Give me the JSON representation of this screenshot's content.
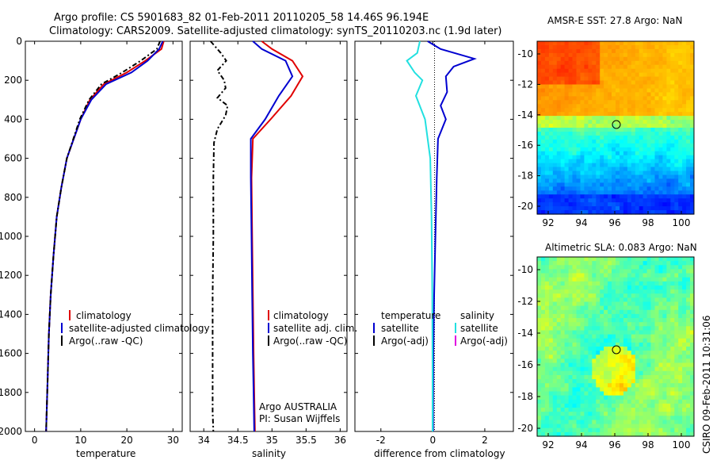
{
  "title": {
    "line1": "Argo profile: CS 5901683_82 01-Feb-2011 20110205_58 14.46S 96.194E",
    "line2": "Climatology: CARS2009. Satellite-adjusted climatology: synTS_20110203.nc (1.9d later)"
  },
  "stamp": "CSIRO 09-Feb-2011 10:31:06",
  "colors": {
    "climatology": "#e00000",
    "satellite": "#0000d0",
    "argo": "#000000",
    "cyan": "#22e0e0",
    "magenta": "#e000e0"
  },
  "chart_data": [
    {
      "type": "line",
      "xlabel": "temperature",
      "ylabel": "",
      "xlim": [
        -2,
        32
      ],
      "ylim": [
        2000,
        0
      ],
      "xticks": [
        0,
        10,
        20,
        30
      ],
      "yticks": [
        0,
        200,
        400,
        600,
        800,
        1000,
        1200,
        1400,
        1600,
        1800,
        2000
      ],
      "legend": [
        "climatology",
        "satellite-adjusted climatology",
        "Argo(..raw -QC)"
      ],
      "series": [
        {
          "name": "climatology",
          "color": "#e00000",
          "style": "solid",
          "x": [
            28,
            27.5,
            24,
            20,
            15,
            12,
            10,
            8.5,
            7,
            5.8,
            4.8,
            4.1,
            3.5,
            3.1,
            2.8,
            2.5
          ],
          "y": [
            0,
            40,
            100,
            160,
            220,
            300,
            400,
            500,
            600,
            750,
            900,
            1100,
            1300,
            1500,
            1750,
            2000
          ]
        },
        {
          "name": "satellite-adjusted climatology",
          "color": "#0000d0",
          "style": "solid",
          "x": [
            27.8,
            27,
            24.5,
            21,
            15.5,
            12.3,
            10,
            8.5,
            7,
            5.8,
            4.8,
            4.1,
            3.5,
            3.1,
            2.8,
            2.5
          ],
          "y": [
            0,
            40,
            100,
            160,
            220,
            300,
            400,
            500,
            600,
            750,
            900,
            1100,
            1300,
            1500,
            1750,
            2000
          ]
        },
        {
          "name": "Argo(..raw -QC)",
          "color": "#000000",
          "style": "dashdot",
          "x": [
            27.2,
            26.5,
            23,
            19,
            14.5,
            11.8,
            9.8,
            8.4,
            7,
            5.8,
            4.8,
            4.1,
            3.5,
            3.1,
            2.8,
            2.5
          ],
          "y": [
            0,
            40,
            100,
            160,
            220,
            300,
            400,
            500,
            600,
            750,
            900,
            1100,
            1300,
            1500,
            1750,
            2000
          ]
        }
      ]
    },
    {
      "type": "line",
      "xlabel": "salinity",
      "ylabel": "",
      "xlim": [
        33.8,
        36.1
      ],
      "ylim": [
        2000,
        0
      ],
      "xticks": [
        34,
        34.5,
        35,
        35.5,
        36
      ],
      "legend": [
        "climatology",
        "satellite adj. clim.",
        "Argo(..raw -QC)"
      ],
      "annotation": [
        "Argo AUSTRALIA",
        "PI: Susan Wijffels"
      ],
      "series": [
        {
          "name": "climatology",
          "color": "#e00000",
          "style": "solid",
          "x": [
            34.85,
            35.0,
            35.3,
            35.45,
            35.28,
            34.98,
            34.72,
            34.7,
            34.71,
            34.72,
            34.73,
            34.74,
            34.75
          ],
          "y": [
            0,
            40,
            100,
            180,
            280,
            400,
            500,
            700,
            1000,
            1300,
            1600,
            1800,
            2000
          ]
        },
        {
          "name": "satellite adj. clim.",
          "color": "#0000d0",
          "style": "solid",
          "x": [
            34.72,
            34.85,
            35.2,
            35.3,
            35.1,
            34.9,
            34.69,
            34.69,
            34.7,
            34.71,
            34.72,
            34.73,
            34.74
          ],
          "y": [
            0,
            40,
            100,
            180,
            280,
            400,
            500,
            700,
            1000,
            1300,
            1600,
            1800,
            2000
          ]
        },
        {
          "name": "Argo(..raw -QC)",
          "color": "#000000",
          "style": "dashdot",
          "x": [
            34.1,
            34.25,
            34.33,
            34.2,
            34.3,
            34.32,
            34.2,
            34.35,
            34.32,
            34.2,
            34.15,
            34.14,
            34.14,
            34.13,
            34.13,
            34.13,
            34.14
          ],
          "y": [
            0,
            60,
            100,
            150,
            200,
            240,
            290,
            330,
            380,
            450,
            520,
            700,
            1000,
            1300,
            1600,
            1900,
            2000
          ]
        }
      ]
    },
    {
      "type": "line",
      "xlabel": "difference from climatology",
      "ylabel": "",
      "xlim": [
        -3,
        3.1
      ],
      "ylim": [
        2000,
        0
      ],
      "xticks": [
        -2,
        0,
        2
      ],
      "legend_left_title": "temperature",
      "legend_left": [
        "satellite",
        "Argo(-adj)"
      ],
      "legend_right_title": "salinity",
      "legend_right": [
        "satellite",
        "Argo(-adj)"
      ],
      "series": [
        {
          "name": "temperature satellite",
          "color": "#0000d0",
          "style": "solid",
          "x": [
            -0.2,
            0.3,
            1.6,
            0.8,
            0.5,
            0.55,
            0.3,
            0.5,
            0.2,
            0.15,
            0.1,
            0.05,
            0.02,
            0.01,
            0.01
          ],
          "y": [
            0,
            40,
            90,
            130,
            180,
            260,
            330,
            400,
            500,
            700,
            1000,
            1300,
            1600,
            1900,
            2000
          ]
        },
        {
          "name": "salinity satellite",
          "color": "#22e0e0",
          "style": "solid",
          "x": [
            -0.5,
            -0.6,
            -1.0,
            -0.7,
            -0.4,
            -0.65,
            -0.3,
            -0.1,
            -0.05,
            -0.02,
            -0.01,
            -0.01
          ],
          "y": [
            0,
            60,
            100,
            160,
            200,
            280,
            400,
            600,
            900,
            1300,
            1700,
            2000
          ]
        }
      ]
    }
  ],
  "maps": [
    {
      "title": "AMSR-E SST: 27.8 Argo: NaN",
      "xticks": [
        "92",
        "94",
        "96",
        "98",
        "100"
      ],
      "yticks": [
        "-10",
        "-12",
        "-14",
        "-16",
        "-18",
        "-20"
      ],
      "colormap": "sst",
      "argo_marker": {
        "lon": 96.2,
        "lat": -14.46
      }
    },
    {
      "title": "Altimetric SLA: 0.083 Argo: NaN",
      "xticks": [
        "92",
        "94",
        "96",
        "98",
        "100"
      ],
      "yticks": [
        "-10",
        "-12",
        "-14",
        "-16",
        "-18",
        "-20"
      ],
      "colormap": "sla",
      "argo_marker": {
        "lon": 96.2,
        "lat": -14.46
      }
    }
  ]
}
